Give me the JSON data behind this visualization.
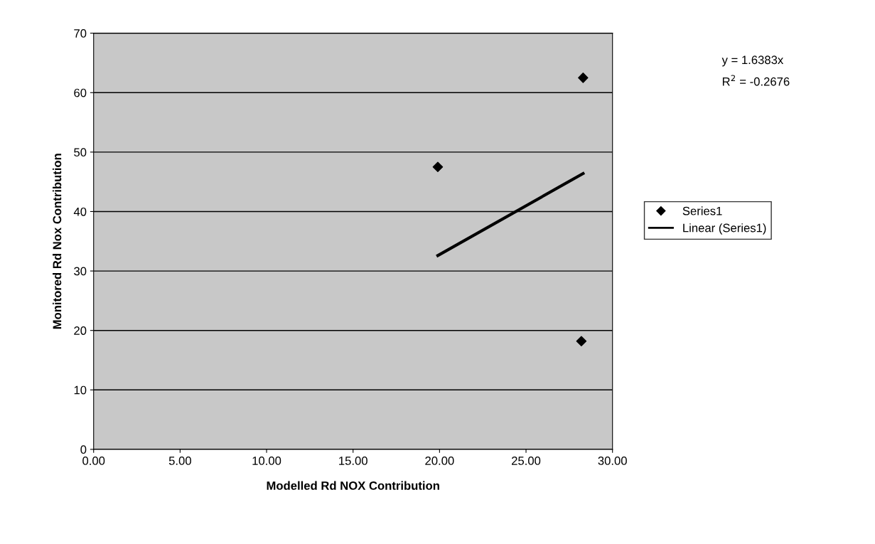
{
  "chart_data": {
    "type": "scatter",
    "xlabel": "Modelled Rd NOX Contribution",
    "ylabel": "Monitored Rd Nox Contribution",
    "xlim": [
      0,
      30
    ],
    "ylim": [
      0,
      70
    ],
    "xticks": [
      {
        "value": 0,
        "label": "0.00"
      },
      {
        "value": 5,
        "label": "5.00"
      },
      {
        "value": 10,
        "label": "10.00"
      },
      {
        "value": 15,
        "label": "15.00"
      },
      {
        "value": 20,
        "label": "20.00"
      },
      {
        "value": 25,
        "label": "25.00"
      },
      {
        "value": 30,
        "label": "30.00"
      }
    ],
    "yticks": [
      0,
      10,
      20,
      30,
      40,
      50,
      60,
      70
    ],
    "grid": "y",
    "legend": "right",
    "series": [
      {
        "name": "Series1",
        "marker": "diamond",
        "color": "#000000",
        "x": [
          19.9,
          28.3,
          28.2
        ],
        "values": [
          47.5,
          62.5,
          18.2
        ]
      },
      {
        "name": "Linear (Series1)",
        "type": "line",
        "color": "#000000",
        "line_style": "solid",
        "x": [
          19.9,
          28.3
        ],
        "values": [
          32.6,
          46.4
        ]
      }
    ],
    "annotations": [
      "y = 1.6383x",
      "R$^{2}$ = -0.2676"
    ]
  }
}
